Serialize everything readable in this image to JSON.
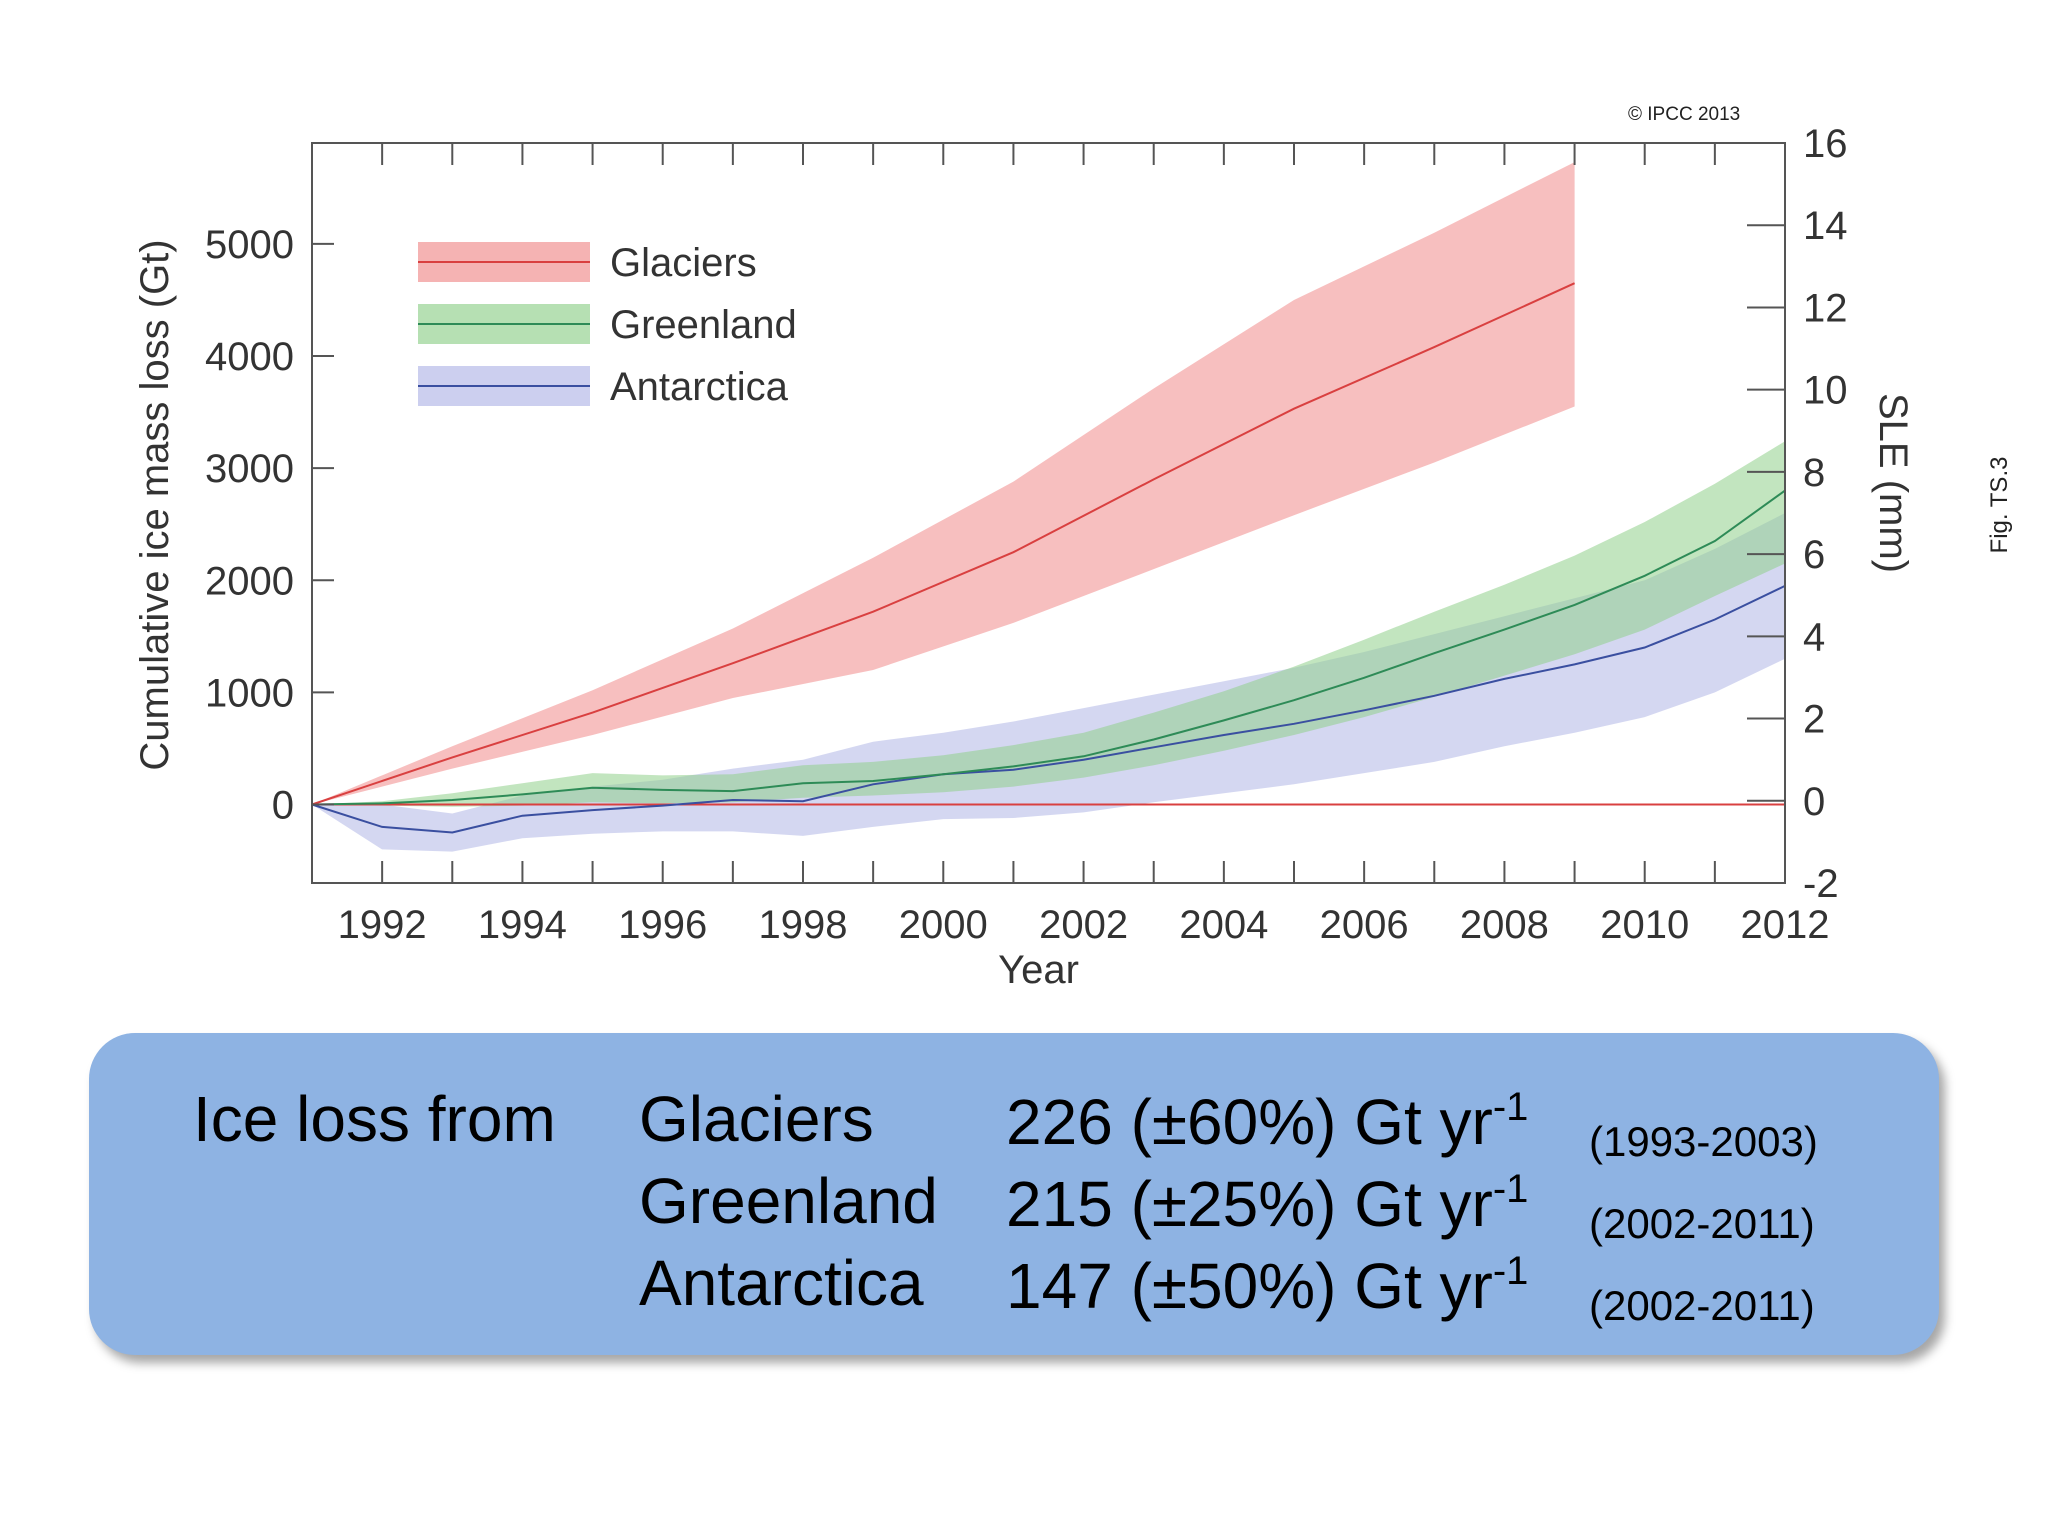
{
  "copyright": "© IPCC 2013",
  "fig_label": "Fig. TS.3",
  "chart_data": {
    "type": "area",
    "title": "",
    "xlabel": "Year",
    "ylabel": "Cumulative ice mass loss (Gt)",
    "y2label": "SLE (mm)",
    "xlim": [
      1991,
      2012
    ],
    "ylim": [
      -700,
      5900
    ],
    "y2lim": [
      -2,
      16
    ],
    "xticks": [
      1992,
      1994,
      1996,
      1998,
      2000,
      2002,
      2004,
      2006,
      2008,
      2010,
      2012
    ],
    "yticks": [
      0,
      1000,
      2000,
      3000,
      4000,
      5000
    ],
    "y2ticks": [
      -2,
      0,
      2,
      4,
      6,
      8,
      10,
      12,
      14,
      16
    ],
    "legend_position": "top-left",
    "colors": {
      "glaciers": "#d94040",
      "greenland": "#2e8b57",
      "antarctica": "#3a4fa0"
    },
    "series": [
      {
        "name": "Glaciers",
        "x": [
          1991,
          1993,
          1995,
          1997,
          1999,
          2001,
          2003,
          2005,
          2007,
          2009
        ],
        "y": [
          0,
          420,
          820,
          1260,
          1720,
          2250,
          2900,
          3530,
          4080,
          4650
        ],
        "lower": [
          0,
          320,
          620,
          950,
          1200,
          1620,
          2100,
          2580,
          3050,
          3550
        ],
        "upper": [
          0,
          520,
          1020,
          1570,
          2200,
          2880,
          3710,
          4500,
          5100,
          5730
        ]
      },
      {
        "name": "Greenland",
        "x": [
          1991,
          1992,
          1993,
          1994,
          1995,
          1996,
          1997,
          1998,
          1999,
          2000,
          2001,
          2002,
          2003,
          2004,
          2005,
          2006,
          2007,
          2008,
          2009,
          2010,
          2011,
          2012
        ],
        "y": [
          0,
          10,
          40,
          90,
          150,
          130,
          120,
          190,
          210,
          270,
          340,
          430,
          580,
          750,
          930,
          1130,
          1350,
          1560,
          1780,
          2040,
          2350,
          2800
        ],
        "lower": [
          0,
          -10,
          -20,
          -10,
          20,
          10,
          20,
          60,
          80,
          110,
          160,
          240,
          350,
          480,
          620,
          780,
          960,
          1150,
          1340,
          1560,
          1860,
          2150
        ],
        "upper": [
          0,
          30,
          100,
          190,
          280,
          260,
          270,
          350,
          380,
          440,
          530,
          640,
          820,
          1010,
          1230,
          1470,
          1720,
          1960,
          2220,
          2520,
          2860,
          3240
        ]
      },
      {
        "name": "Antarctica",
        "x": [
          1991,
          1992,
          1993,
          1994,
          1995,
          1996,
          1997,
          1998,
          1999,
          2000,
          2001,
          2002,
          2003,
          2004,
          2005,
          2006,
          2007,
          2008,
          2009,
          2010,
          2011,
          2012
        ],
        "y": [
          0,
          -200,
          -250,
          -100,
          -50,
          -10,
          40,
          30,
          180,
          270,
          310,
          400,
          510,
          620,
          720,
          840,
          970,
          1120,
          1250,
          1400,
          1650,
          1950
        ],
        "lower": [
          0,
          -400,
          -420,
          -300,
          -260,
          -240,
          -240,
          -280,
          -200,
          -130,
          -120,
          -70,
          20,
          100,
          180,
          280,
          380,
          520,
          640,
          780,
          1000,
          1300
        ],
        "upper": [
          0,
          0,
          -80,
          80,
          160,
          220,
          320,
          400,
          560,
          640,
          740,
          860,
          980,
          1100,
          1220,
          1360,
          1520,
          1680,
          1840,
          2000,
          2280,
          2600
        ]
      }
    ]
  },
  "summary": {
    "label": "Ice loss from",
    "rows": [
      {
        "name": "Glaciers",
        "value": "226 (±60%) Gt yr",
        "exponent": "-1",
        "period": "(1993-2003)"
      },
      {
        "name": "Greenland",
        "value": "215 (±25%) Gt yr",
        "exponent": "-1",
        "period": "(2002-2011)"
      },
      {
        "name": "Antarctica",
        "value": "147 (±50%) Gt yr",
        "exponent": "-1",
        "period": "(2002-2011)"
      }
    ]
  }
}
